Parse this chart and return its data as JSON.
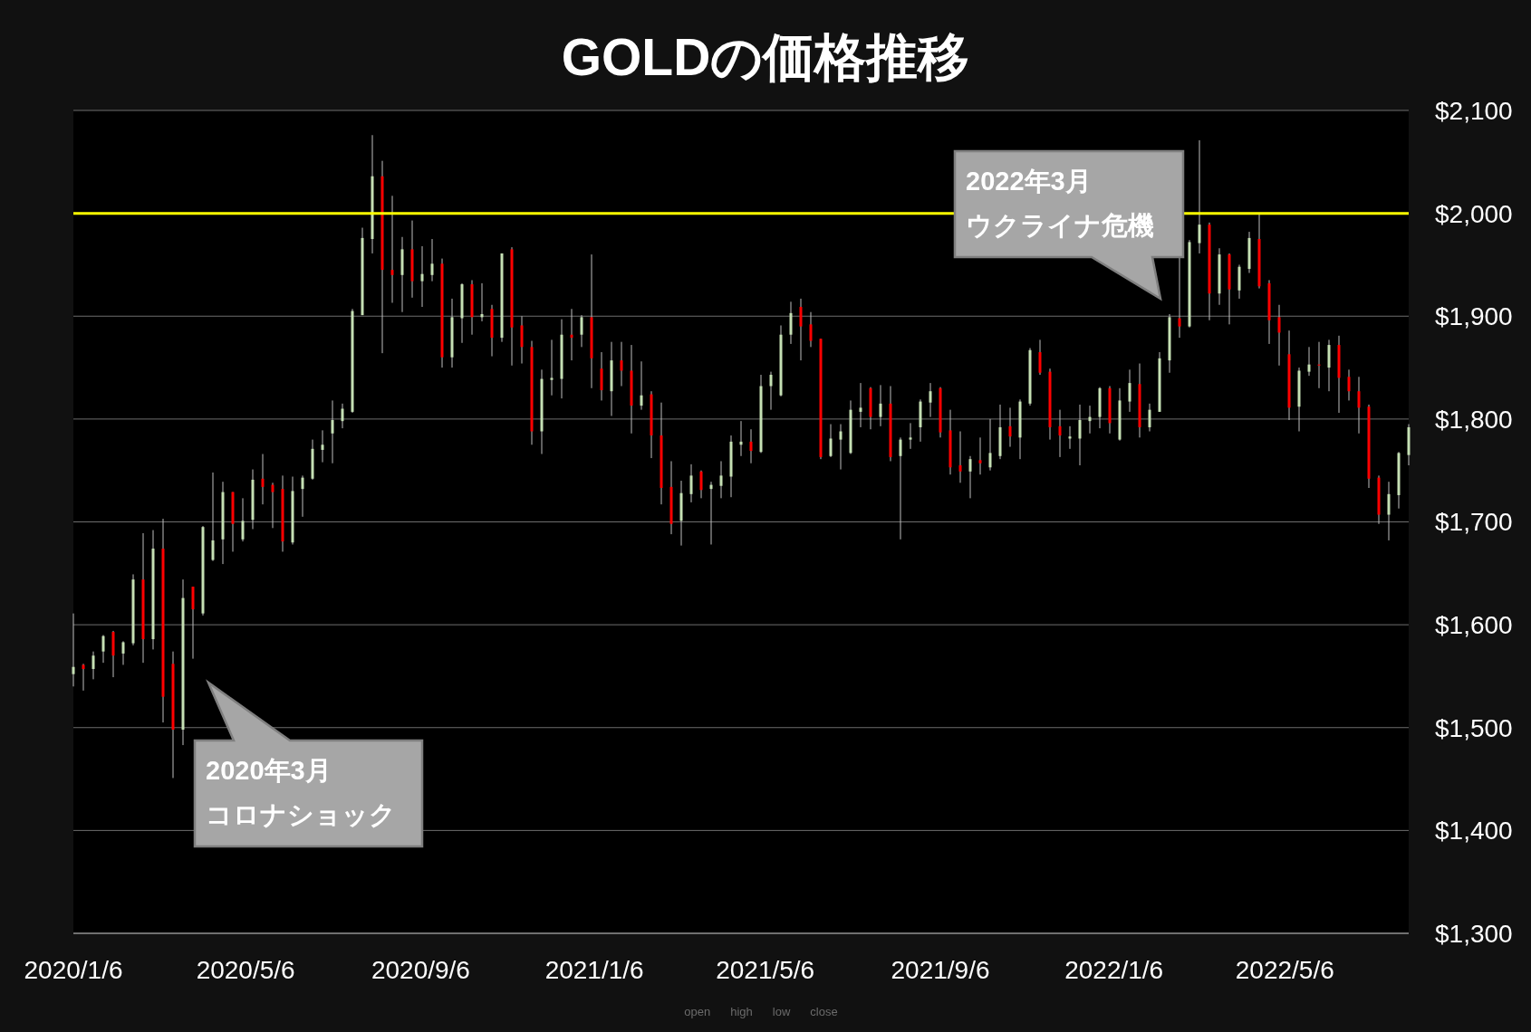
{
  "chart_data": {
    "type": "candlestick",
    "title": "GOLDの価格推移",
    "x": [
      "2020-01-06",
      "2020-01-13",
      "2020-01-20",
      "2020-01-27",
      "2020-02-03",
      "2020-02-10",
      "2020-02-17",
      "2020-02-24",
      "2020-03-02",
      "2020-03-09",
      "2020-03-16",
      "2020-03-23",
      "2020-03-30",
      "2020-04-06",
      "2020-04-13",
      "2020-04-20",
      "2020-04-27",
      "2020-05-04",
      "2020-05-11",
      "2020-05-18",
      "2020-05-25",
      "2020-06-01",
      "2020-06-08",
      "2020-06-15",
      "2020-06-22",
      "2020-06-29",
      "2020-07-06",
      "2020-07-13",
      "2020-07-20",
      "2020-07-27",
      "2020-08-03",
      "2020-08-10",
      "2020-08-17",
      "2020-08-24",
      "2020-08-31",
      "2020-09-07",
      "2020-09-14",
      "2020-09-21",
      "2020-09-28",
      "2020-10-05",
      "2020-10-12",
      "2020-10-19",
      "2020-10-26",
      "2020-11-02",
      "2020-11-09",
      "2020-11-16",
      "2020-11-23",
      "2020-11-30",
      "2020-12-07",
      "2020-12-14",
      "2020-12-21",
      "2020-12-28",
      "2021-01-04",
      "2021-01-11",
      "2021-01-18",
      "2021-01-25",
      "2021-02-01",
      "2021-02-08",
      "2021-02-15",
      "2021-02-22",
      "2021-03-01",
      "2021-03-08",
      "2021-03-15",
      "2021-03-22",
      "2021-03-29",
      "2021-04-05",
      "2021-04-12",
      "2021-04-19",
      "2021-04-26",
      "2021-05-03",
      "2021-05-10",
      "2021-05-17",
      "2021-05-24",
      "2021-05-31",
      "2021-06-07",
      "2021-06-14",
      "2021-06-21",
      "2021-06-28",
      "2021-07-05",
      "2021-07-12",
      "2021-07-19",
      "2021-07-26",
      "2021-08-02",
      "2021-08-09",
      "2021-08-16",
      "2021-08-23",
      "2021-08-30",
      "2021-09-06",
      "2021-09-13",
      "2021-09-20",
      "2021-09-27",
      "2021-10-04",
      "2021-10-11",
      "2021-10-18",
      "2021-10-25",
      "2021-11-01",
      "2021-11-08",
      "2021-11-15",
      "2021-11-22",
      "2021-11-29",
      "2021-12-06",
      "2021-12-13",
      "2021-12-20",
      "2021-12-27",
      "2022-01-03",
      "2022-01-10",
      "2022-01-17",
      "2022-01-24",
      "2022-01-31",
      "2022-02-07",
      "2022-02-14",
      "2022-02-21",
      "2022-02-28",
      "2022-03-07",
      "2022-03-14",
      "2022-03-21",
      "2022-03-28",
      "2022-04-04",
      "2022-04-11",
      "2022-04-18",
      "2022-04-25",
      "2022-05-02",
      "2022-05-09",
      "2022-05-16",
      "2022-05-23",
      "2022-05-30",
      "2022-06-06",
      "2022-06-13",
      "2022-06-20",
      "2022-06-27",
      "2022-07-04",
      "2022-07-11",
      "2022-07-18",
      "2022-07-25",
      "2022-08-01"
    ],
    "ohlc": [
      [
        1552,
        1611,
        1540,
        1559
      ],
      [
        1561,
        1562,
        1536,
        1557
      ],
      [
        1557,
        1574,
        1547,
        1570
      ],
      [
        1574,
        1590,
        1563,
        1589
      ],
      [
        1593,
        1594,
        1549,
        1570
      ],
      [
        1572,
        1584,
        1561,
        1583
      ],
      [
        1582,
        1649,
        1580,
        1644
      ],
      [
        1644,
        1689,
        1563,
        1586
      ],
      [
        1586,
        1692,
        1576,
        1674
      ],
      [
        1674,
        1703,
        1505,
        1530
      ],
      [
        1562,
        1574,
        1451,
        1498
      ],
      [
        1498,
        1644,
        1483,
        1626
      ],
      [
        1637,
        1637,
        1567,
        1615
      ],
      [
        1611,
        1696,
        1609,
        1695
      ],
      [
        1663,
        1748,
        1662,
        1682
      ],
      [
        1683,
        1739,
        1659,
        1729
      ],
      [
        1729,
        1729,
        1671,
        1698
      ],
      [
        1683,
        1723,
        1681,
        1701
      ],
      [
        1702,
        1751,
        1693,
        1741
      ],
      [
        1742,
        1766,
        1717,
        1734
      ],
      [
        1736,
        1738,
        1694,
        1729
      ],
      [
        1732,
        1745,
        1671,
        1681
      ],
      [
        1680,
        1744,
        1678,
        1730
      ],
      [
        1732,
        1745,
        1705,
        1743
      ],
      [
        1742,
        1780,
        1741,
        1771
      ],
      [
        1770,
        1789,
        1758,
        1775
      ],
      [
        1786,
        1818,
        1757,
        1799
      ],
      [
        1798,
        1815,
        1791,
        1810
      ],
      [
        1807,
        1907,
        1806,
        1905
      ],
      [
        1901,
        1986,
        1901,
        1976
      ],
      [
        1975,
        2076,
        1961,
        2036
      ],
      [
        2036,
        2051,
        1864,
        1945
      ],
      [
        1945,
        2017,
        1913,
        1940
      ],
      [
        1940,
        1977,
        1904,
        1965
      ],
      [
        1965,
        1993,
        1918,
        1934
      ],
      [
        1934,
        1968,
        1909,
        1941
      ],
      [
        1940,
        1975,
        1934,
        1951
      ],
      [
        1951,
        1956,
        1850,
        1860
      ],
      [
        1860,
        1917,
        1850,
        1899
      ],
      [
        1898,
        1932,
        1874,
        1931
      ],
      [
        1931,
        1935,
        1882,
        1899
      ],
      [
        1899,
        1932,
        1895,
        1902
      ],
      [
        1907,
        1911,
        1861,
        1879
      ],
      [
        1879,
        1961,
        1875,
        1961
      ],
      [
        1965,
        1967,
        1852,
        1889
      ],
      [
        1891,
        1900,
        1854,
        1870
      ],
      [
        1870,
        1876,
        1775,
        1788
      ],
      [
        1788,
        1848,
        1766,
        1839
      ],
      [
        1838,
        1877,
        1823,
        1840
      ],
      [
        1839,
        1897,
        1820,
        1882
      ],
      [
        1882,
        1907,
        1857,
        1879
      ],
      [
        1882,
        1901,
        1870,
        1899
      ],
      [
        1899,
        1960,
        1830,
        1859
      ],
      [
        1849,
        1865,
        1818,
        1828
      ],
      [
        1827,
        1875,
        1803,
        1857
      ],
      [
        1857,
        1875,
        1832,
        1847
      ],
      [
        1847,
        1872,
        1786,
        1813
      ],
      [
        1813,
        1856,
        1809,
        1823
      ],
      [
        1824,
        1827,
        1762,
        1784
      ],
      [
        1784,
        1816,
        1717,
        1733
      ],
      [
        1734,
        1759,
        1688,
        1698
      ],
      [
        1701,
        1740,
        1677,
        1728
      ],
      [
        1727,
        1756,
        1719,
        1745
      ],
      [
        1749,
        1750,
        1723,
        1731
      ],
      [
        1732,
        1739,
        1678,
        1736
      ],
      [
        1735,
        1759,
        1723,
        1745
      ],
      [
        1744,
        1784,
        1724,
        1778
      ],
      [
        1775,
        1798,
        1764,
        1778
      ],
      [
        1778,
        1790,
        1757,
        1769
      ],
      [
        1768,
        1843,
        1767,
        1832
      ],
      [
        1832,
        1846,
        1809,
        1843
      ],
      [
        1823,
        1891,
        1822,
        1882
      ],
      [
        1882,
        1914,
        1873,
        1903
      ],
      [
        1909,
        1917,
        1857,
        1890
      ],
      [
        1892,
        1904,
        1870,
        1876
      ],
      [
        1878,
        1878,
        1761,
        1763
      ],
      [
        1764,
        1795,
        1763,
        1781
      ],
      [
        1780,
        1795,
        1751,
        1788
      ],
      [
        1767,
        1818,
        1766,
        1809
      ],
      [
        1807,
        1835,
        1792,
        1811
      ],
      [
        1830,
        1831,
        1790,
        1802
      ],
      [
        1802,
        1833,
        1793,
        1815
      ],
      [
        1815,
        1832,
        1759,
        1763
      ],
      [
        1764,
        1782,
        1683,
        1780
      ],
      [
        1780,
        1796,
        1771,
        1782
      ],
      [
        1792,
        1819,
        1778,
        1817
      ],
      [
        1816,
        1835,
        1802,
        1827
      ],
      [
        1830,
        1831,
        1782,
        1787
      ],
      [
        1789,
        1809,
        1746,
        1753
      ],
      [
        1755,
        1788,
        1738,
        1749
      ],
      [
        1749,
        1764,
        1723,
        1761
      ],
      [
        1760,
        1782,
        1746,
        1757
      ],
      [
        1753,
        1800,
        1750,
        1767
      ],
      [
        1764,
        1814,
        1761,
        1792
      ],
      [
        1793,
        1811,
        1773,
        1783
      ],
      [
        1782,
        1819,
        1761,
        1817
      ],
      [
        1815,
        1869,
        1813,
        1867
      ],
      [
        1865,
        1877,
        1843,
        1845
      ],
      [
        1846,
        1849,
        1780,
        1792
      ],
      [
        1793,
        1809,
        1763,
        1784
      ],
      [
        1781,
        1793,
        1771,
        1783
      ],
      [
        1781,
        1814,
        1755,
        1799
      ],
      [
        1798,
        1813,
        1786,
        1802
      ],
      [
        1802,
        1831,
        1791,
        1830
      ],
      [
        1830,
        1832,
        1786,
        1796
      ],
      [
        1780,
        1830,
        1779,
        1818
      ],
      [
        1817,
        1848,
        1807,
        1835
      ],
      [
        1834,
        1854,
        1782,
        1792
      ],
      [
        1792,
        1815,
        1788,
        1809
      ],
      [
        1807,
        1865,
        1807,
        1859
      ],
      [
        1857,
        1902,
        1845,
        1899
      ],
      [
        1898,
        1957,
        1879,
        1890
      ],
      [
        1890,
        1974,
        1889,
        1972
      ],
      [
        1971,
        2071,
        1961,
        1989
      ],
      [
        1989,
        1991,
        1896,
        1922
      ],
      [
        1922,
        1966,
        1911,
        1960
      ],
      [
        1960,
        1961,
        1892,
        1926
      ],
      [
        1925,
        1950,
        1917,
        1948
      ],
      [
        1946,
        1982,
        1942,
        1976
      ],
      [
        1975,
        2000,
        1927,
        1929
      ],
      [
        1932,
        1935,
        1873,
        1896
      ],
      [
        1899,
        1911,
        1852,
        1884
      ],
      [
        1863,
        1886,
        1799,
        1811
      ],
      [
        1812,
        1850,
        1788,
        1847
      ],
      [
        1846,
        1870,
        1842,
        1853
      ],
      [
        1853,
        1875,
        1830,
        1852
      ],
      [
        1850,
        1877,
        1827,
        1872
      ],
      [
        1872,
        1881,
        1806,
        1840
      ],
      [
        1841,
        1848,
        1818,
        1827
      ],
      [
        1827,
        1841,
        1786,
        1811
      ],
      [
        1812,
        1814,
        1733,
        1742
      ],
      [
        1743,
        1745,
        1698,
        1707
      ],
      [
        1707,
        1739,
        1682,
        1727
      ],
      [
        1726,
        1768,
        1713,
        1767
      ],
      [
        1765,
        1795,
        1755,
        1792
      ]
    ],
    "colors": [
      "#c5e0b4",
      "#ff0000",
      "#c5e0b4",
      "#c5e0b4",
      "#ff0000",
      "#c5e0b4",
      "#c5e0b4",
      "#ff0000",
      "#c5e0b4",
      "#ff0000",
      "#ff0000",
      "#c5e0b4",
      "#ff0000",
      "#c5e0b4",
      "#c5e0b4",
      "#c5e0b4",
      "#ff0000",
      "#c5e0b4",
      "#c5e0b4",
      "#ff0000",
      "#ff0000",
      "#ff0000",
      "#c5e0b4",
      "#c5e0b4",
      "#c5e0b4",
      "#c5e0b4",
      "#c5e0b4",
      "#c5e0b4",
      "#c5e0b4",
      "#c5e0b4",
      "#c5e0b4",
      "#ff0000",
      "#ff0000",
      "#c5e0b4",
      "#ff0000",
      "#c5e0b4",
      "#c5e0b4",
      "#ff0000",
      "#c5e0b4",
      "#c5e0b4",
      "#ff0000",
      "#c5e0b4",
      "#ff0000",
      "#c5e0b4",
      "#ff0000",
      "#ff0000",
      "#ff0000",
      "#c5e0b4",
      "#c5e0b4",
      "#c5e0b4",
      "#ff0000",
      "#c5e0b4",
      "#ff0000",
      "#ff0000",
      "#c5e0b4",
      "#ff0000",
      "#ff0000",
      "#c5e0b4",
      "#ff0000",
      "#ff0000",
      "#ff0000",
      "#c5e0b4",
      "#c5e0b4",
      "#ff0000",
      "#c5e0b4",
      "#c5e0b4",
      "#c5e0b4",
      "#c5e0b4",
      "#ff0000",
      "#c5e0b4",
      "#c5e0b4",
      "#c5e0b4",
      "#c5e0b4",
      "#ff0000",
      "#ff0000",
      "#ff0000",
      "#c5e0b4",
      "#c5e0b4",
      "#c5e0b4",
      "#c5e0b4",
      "#ff0000",
      "#c5e0b4",
      "#ff0000",
      "#c5e0b4",
      "#c5e0b4",
      "#c5e0b4",
      "#c5e0b4",
      "#ff0000",
      "#ff0000",
      "#ff0000",
      "#c5e0b4",
      "#ff0000",
      "#c5e0b4",
      "#c5e0b4",
      "#ff0000",
      "#c5e0b4",
      "#c5e0b4",
      "#ff0000",
      "#ff0000",
      "#ff0000",
      "#c5e0b4",
      "#c5e0b4",
      "#c5e0b4",
      "#c5e0b4",
      "#ff0000",
      "#c5e0b4",
      "#c5e0b4",
      "#ff0000",
      "#c5e0b4",
      "#c5e0b4",
      "#c5e0b4",
      "#ff0000",
      "#c5e0b4",
      "#c5e0b4",
      "#ff0000",
      "#c5e0b4",
      "#ff0000",
      "#c5e0b4",
      "#c5e0b4",
      "#ff0000",
      "#ff0000",
      "#ff0000",
      "#ff0000",
      "#c5e0b4",
      "#c5e0b4",
      "#ff0000",
      "#c5e0b4",
      "#ff0000",
      "#ff0000",
      "#ff0000",
      "#ff0000",
      "#ff0000",
      "#c5e0b4",
      "#c5e0b4",
      "#c5e0b4"
    ],
    "xlim": [
      "2020-01-06",
      "2022-08-01"
    ],
    "xticks": [
      {
        "value": "2020-01-06",
        "label": "2020/1/6"
      },
      {
        "value": "2020-05-06",
        "label": "2020/5/6"
      },
      {
        "value": "2020-09-06",
        "label": "2020/9/6"
      },
      {
        "value": "2021-01-06",
        "label": "2021/1/6"
      },
      {
        "value": "2021-05-06",
        "label": "2021/5/6"
      },
      {
        "value": "2021-09-06",
        "label": "2021/9/6"
      },
      {
        "value": "2022-01-06",
        "label": "2022/1/6"
      },
      {
        "value": "2022-05-06",
        "label": "2022/5/6"
      }
    ],
    "ylim": [
      1300,
      2100
    ],
    "yticks": [
      {
        "value": 1300,
        "label": "$1,300"
      },
      {
        "value": 1400,
        "label": "$1,400"
      },
      {
        "value": 1500,
        "label": "$1,500"
      },
      {
        "value": 1600,
        "label": "$1,600"
      },
      {
        "value": 1700,
        "label": "$1,700"
      },
      {
        "value": 1800,
        "label": "$1,800"
      },
      {
        "value": 1900,
        "label": "$1,900"
      },
      {
        "value": 2000,
        "label": "$2,000"
      },
      {
        "value": 2100,
        "label": "$2,100"
      }
    ],
    "grid": "y",
    "ref_lines": [
      {
        "axis": "y",
        "value": 2000,
        "color": "#ffff00"
      }
    ],
    "annotations": [
      "2020年3月",
      "コロナショック",
      "2022年3月",
      "ウクライナ危機",
      "open",
      "high",
      "low",
      "close"
    ]
  }
}
